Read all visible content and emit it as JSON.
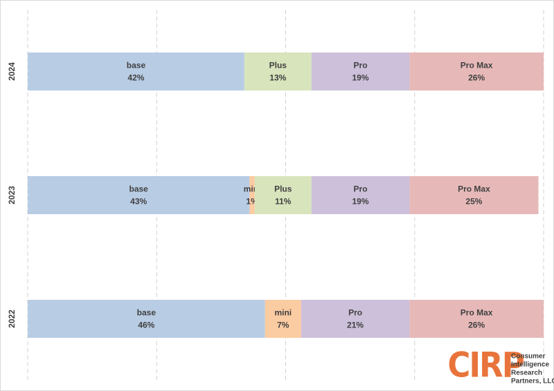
{
  "chart_data": {
    "type": "stacked-bar-horizontal",
    "categories": [
      "2024",
      "2023",
      "2022"
    ],
    "series": [
      {
        "name": "base",
        "color": "#b8cce4",
        "values": [
          42,
          43,
          46
        ],
        "value_labels": [
          "42%",
          "43%",
          "46%"
        ]
      },
      {
        "name": "mini",
        "color": "#fbcba2",
        "values": [
          null,
          1,
          7
        ],
        "value_labels": [
          null,
          "1%",
          "7%"
        ]
      },
      {
        "name": "Plus",
        "color": "#d8e4bc",
        "values": [
          13,
          11,
          null
        ],
        "value_labels": [
          "13%",
          "11%",
          null
        ]
      },
      {
        "name": "Pro",
        "color": "#ccc0da",
        "values": [
          19,
          19,
          21
        ],
        "value_labels": [
          "19%",
          "19%",
          "21%"
        ]
      },
      {
        "name": "Pro Max",
        "color": "#e6b9b8",
        "values": [
          26,
          25,
          26
        ],
        "value_labels": [
          "26%",
          "25%",
          "26%"
        ]
      }
    ],
    "xlim": [
      0,
      100
    ],
    "xticks": [
      0,
      25,
      50,
      75,
      100
    ],
    "grid": true
  },
  "logo": {
    "mark": "CIRP",
    "lines": [
      "Consumer",
      "Intelligence",
      "Research",
      "Partners, LLC"
    ]
  }
}
